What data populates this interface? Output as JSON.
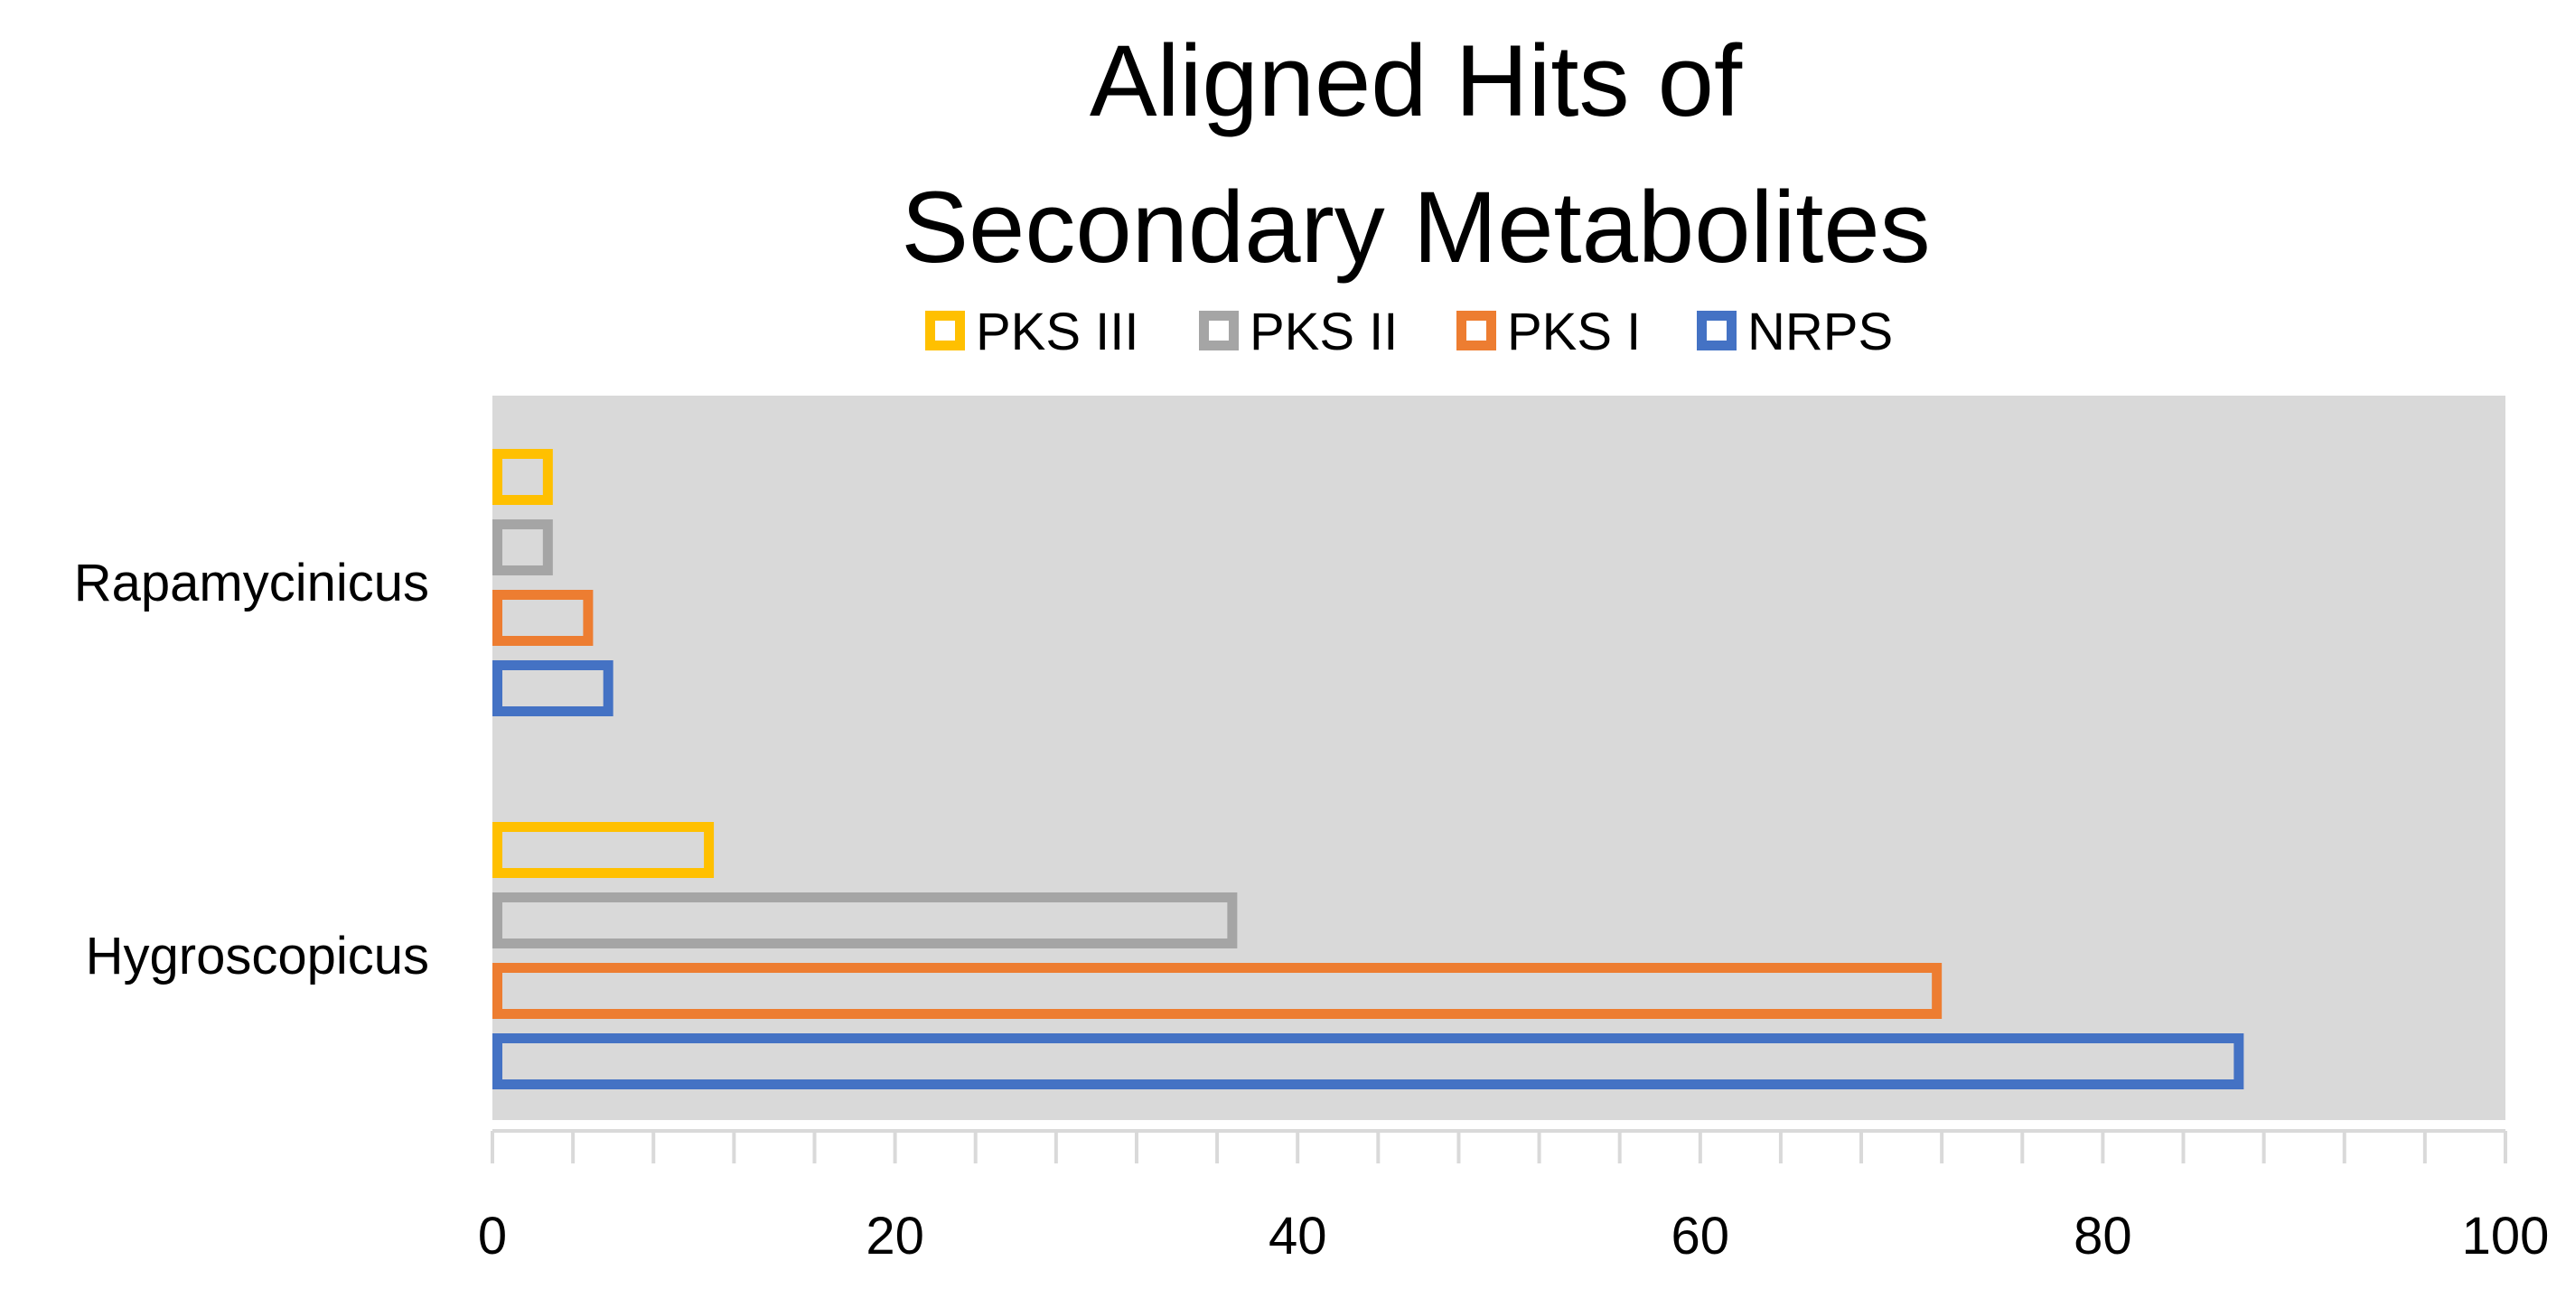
{
  "chart_data": {
    "type": "bar",
    "orientation": "horizontal",
    "title_lines": [
      "Aligned Hits of",
      "Secondary Metabolites"
    ],
    "categories": [
      "Hygroscopicus",
      "Rapamycinicus"
    ],
    "series": [
      {
        "name": "NRPS",
        "color": "#4472C4",
        "values": [
          87,
          6
        ]
      },
      {
        "name": "PKS I",
        "color": "#ED7D31",
        "values": [
          72,
          5
        ]
      },
      {
        "name": "PKS II",
        "color": "#A5A5A5",
        "values": [
          37,
          3
        ]
      },
      {
        "name": "PKS III",
        "color": "#FFC000",
        "values": [
          11,
          3
        ]
      }
    ],
    "legend_order": [
      "PKS III",
      "PKS II",
      "PKS I",
      "NRPS"
    ],
    "legend_position": "top",
    "xlim": [
      0,
      100
    ],
    "x_ticks": [
      0,
      20,
      40,
      60,
      80,
      100
    ],
    "x_minor_step": 4,
    "grid": false,
    "plot_background": "#D9D9D9",
    "bar_style": "outlined"
  }
}
